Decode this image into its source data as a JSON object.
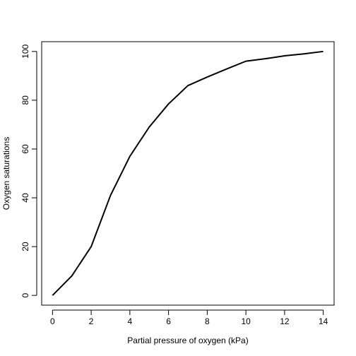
{
  "chart_data": {
    "type": "line",
    "title": "",
    "xlabel": "Partial pressure of oxygen (kPa)",
    "ylabel": "Oxygen saturations",
    "xlim": [
      -0.56,
      14.56
    ],
    "ylim": [
      -4,
      104
    ],
    "xticks": [
      0,
      2,
      4,
      6,
      8,
      10,
      12,
      14
    ],
    "yticks": [
      0,
      20,
      40,
      60,
      80,
      100
    ],
    "grid": false,
    "legend": "none",
    "line_color": "#000000",
    "series": [
      {
        "x": [
          0,
          1,
          2,
          3,
          4,
          5,
          6,
          7,
          8,
          9,
          10,
          11,
          12,
          13,
          14
        ],
        "values": [
          0,
          8,
          20,
          41,
          57,
          69,
          78.5,
          86,
          89.5,
          92.8,
          96,
          97,
          98.2,
          99,
          100
        ]
      }
    ]
  }
}
